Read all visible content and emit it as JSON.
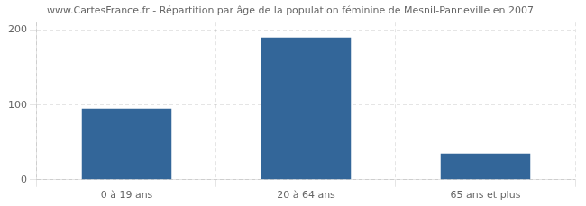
{
  "chart_data": {
    "type": "bar",
    "title": "www.CartesFrance.fr - Répartition par âge de la population féminine de Mesnil-Panneville en 2007",
    "categories": [
      "0 à 19 ans",
      "20 à 64 ans",
      "65 ans et plus"
    ],
    "values": [
      95,
      190,
      35
    ],
    "color": "#336699",
    "ylim": [
      0,
      210
    ],
    "yticks": [
      0,
      100,
      200
    ],
    "grid": true
  }
}
